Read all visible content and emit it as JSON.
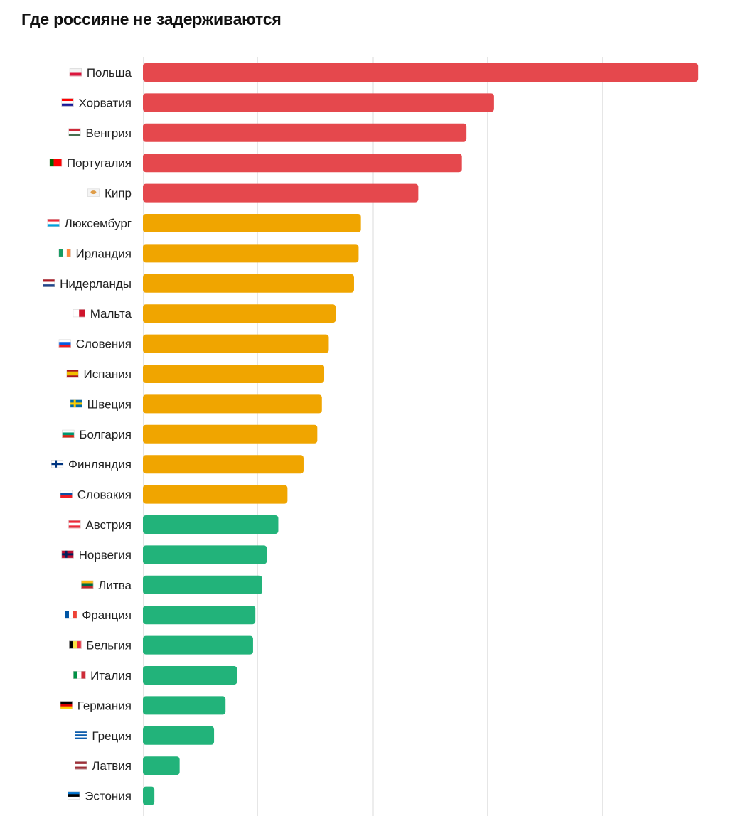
{
  "chart_data": {
    "type": "bar",
    "orientation": "horizontal",
    "title": "Где россияне не задерживаются",
    "xlabel": "",
    "ylabel": "",
    "xlim": [
      0,
      25
    ],
    "grid": true,
    "legend": "none",
    "colors": {
      "red": "#e5484d",
      "orange": "#f0a500",
      "green": "#22b37a"
    },
    "categories": [
      {
        "label": "Польша",
        "flag": "pl",
        "value": 24.2,
        "color": "red"
      },
      {
        "label": "Хорватия",
        "flag": "hr",
        "value": 15.3,
        "color": "red"
      },
      {
        "label": "Венгрия",
        "flag": "hu",
        "value": 14.1,
        "color": "red"
      },
      {
        "label": "Португалия",
        "flag": "pt",
        "value": 13.9,
        "color": "red"
      },
      {
        "label": "Кипр",
        "flag": "cy",
        "value": 12.0,
        "color": "red"
      },
      {
        "label": "Люксембург",
        "flag": "lu",
        "value": 9.5,
        "color": "orange"
      },
      {
        "label": "Ирландия",
        "flag": "ie",
        "value": 9.4,
        "color": "orange"
      },
      {
        "label": "Нидерланды",
        "flag": "nl",
        "value": 9.2,
        "color": "orange"
      },
      {
        "label": "Мальта",
        "flag": "mt",
        "value": 8.4,
        "color": "orange"
      },
      {
        "label": "Словения",
        "flag": "si",
        "value": 8.1,
        "color": "orange"
      },
      {
        "label": "Испания",
        "flag": "es",
        "value": 7.9,
        "color": "orange"
      },
      {
        "label": "Швеция",
        "flag": "se",
        "value": 7.8,
        "color": "orange"
      },
      {
        "label": "Болгария",
        "flag": "bg",
        "value": 7.6,
        "color": "orange"
      },
      {
        "label": "Финляндия",
        "flag": "fi",
        "value": 7.0,
        "color": "orange"
      },
      {
        "label": "Словакия",
        "flag": "sk",
        "value": 6.3,
        "color": "orange"
      },
      {
        "label": "Австрия",
        "flag": "at",
        "value": 5.9,
        "color": "green"
      },
      {
        "label": "Норвегия",
        "flag": "no",
        "value": 5.4,
        "color": "green"
      },
      {
        "label": "Литва",
        "flag": "lt",
        "value": 5.2,
        "color": "green"
      },
      {
        "label": "Франция",
        "flag": "fr",
        "value": 4.9,
        "color": "green"
      },
      {
        "label": "Бельгия",
        "flag": "be",
        "value": 4.8,
        "color": "green"
      },
      {
        "label": "Италия",
        "flag": "it",
        "value": 4.1,
        "color": "green"
      },
      {
        "label": "Германия",
        "flag": "de",
        "value": 3.6,
        "color": "green"
      },
      {
        "label": "Греция",
        "flag": "gr",
        "value": 3.1,
        "color": "green"
      },
      {
        "label": "Латвия",
        "flag": "lv",
        "value": 1.6,
        "color": "green"
      },
      {
        "label": "Эстония",
        "flag": "ee",
        "value": 0.5,
        "color": "green"
      }
    ]
  }
}
